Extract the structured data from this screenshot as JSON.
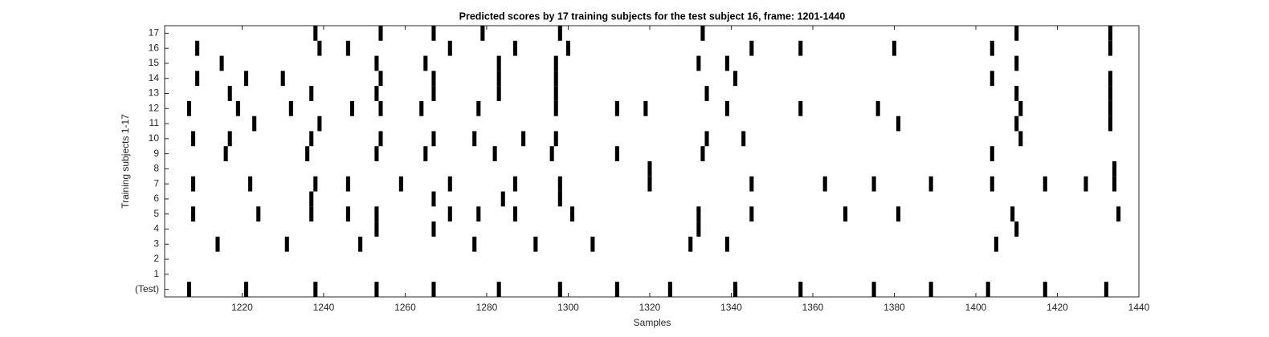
{
  "chart_data": {
    "type": "raster",
    "title": "Predicted scores by 17 training subjects for the test subject 16, frame: 1201-1440",
    "xlabel": "Samples",
    "ylabel": "Training subjects 1-17",
    "categories": [
      "(Test)",
      "1",
      "2",
      "3",
      "4",
      "5",
      "6",
      "7",
      "8",
      "9",
      "10",
      "11",
      "12",
      "13",
      "14",
      "15",
      "16",
      "17"
    ],
    "color": "#000000",
    "xlim": [
      1201,
      1440
    ],
    "xticks": [
      1220,
      1240,
      1260,
      1280,
      1300,
      1320,
      1340,
      1360,
      1380,
      1400,
      1420,
      1440
    ],
    "events": [
      [
        1207,
        1221,
        1238,
        1253,
        1267,
        1283,
        1298,
        1312,
        1325,
        1341,
        1357,
        1375,
        1389,
        1403,
        1417,
        1432
      ],
      [],
      [],
      [
        1214,
        1231,
        1249,
        1277,
        1292,
        1306,
        1330,
        1339,
        1405
      ],
      [
        1253,
        1267,
        1332,
        1410
      ],
      [
        1208,
        1224,
        1237,
        1246,
        1253,
        1271,
        1278,
        1287,
        1301,
        1332,
        1345,
        1368,
        1381,
        1409,
        1435
      ],
      [
        1237,
        1267,
        1284,
        1298
      ],
      [
        1208,
        1222,
        1238,
        1246,
        1259,
        1271,
        1287,
        1298,
        1320,
        1345,
        1363,
        1375,
        1389,
        1404,
        1417,
        1427,
        1434
      ],
      [
        1320,
        1434
      ],
      [
        1216,
        1236,
        1253,
        1265,
        1282,
        1296,
        1312,
        1333,
        1404
      ],
      [
        1208,
        1217,
        1237,
        1254,
        1267,
        1277,
        1289,
        1297,
        1334,
        1343,
        1411
      ],
      [
        1223,
        1239,
        1381,
        1410,
        1433
      ],
      [
        1207,
        1219,
        1232,
        1247,
        1254,
        1264,
        1278,
        1297,
        1312,
        1319,
        1339,
        1357,
        1376,
        1411,
        1433
      ],
      [
        1217,
        1237,
        1253,
        1267,
        1283,
        1297,
        1334,
        1410,
        1433
      ],
      [
        1209,
        1221,
        1230,
        1254,
        1267,
        1283,
        1297,
        1341,
        1404,
        1433
      ],
      [
        1215,
        1253,
        1265,
        1283,
        1297,
        1332,
        1339,
        1410
      ],
      [
        1209,
        1239,
        1246,
        1271,
        1287,
        1300,
        1345,
        1357,
        1380,
        1404,
        1433
      ],
      [
        1238,
        1254,
        1267,
        1279,
        1298,
        1333,
        1410,
        1433
      ]
    ]
  }
}
